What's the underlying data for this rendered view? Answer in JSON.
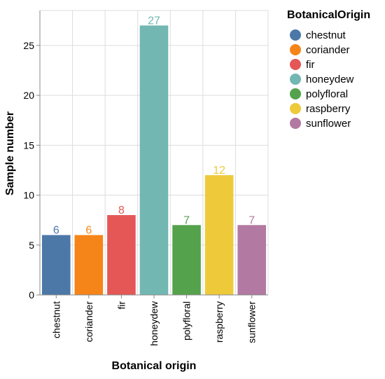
{
  "chart_data": {
    "type": "bar",
    "categories": [
      "chestnut",
      "coriander",
      "fir",
      "honeydew",
      "polyfloral",
      "raspberry",
      "sunflower"
    ],
    "values": [
      6,
      6,
      8,
      27,
      7,
      12,
      7
    ],
    "colors": [
      "#4c78a8",
      "#f58518",
      "#e45756",
      "#72b7b2",
      "#54a24b",
      "#eeca3b",
      "#b279a2"
    ],
    "xlabel": "Botanical origin",
    "ylabel": "Sample number",
    "ylim": [
      0,
      28.5
    ],
    "yticks": [
      0,
      5,
      10,
      15,
      20,
      25
    ],
    "grid": true,
    "legend": {
      "title": "BotanicalOrigin",
      "placement": "right"
    }
  }
}
